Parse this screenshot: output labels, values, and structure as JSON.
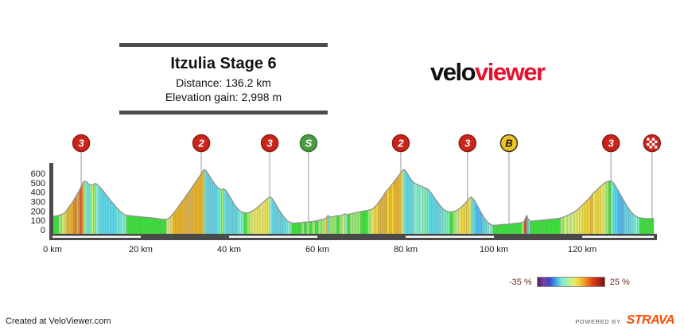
{
  "header": {
    "title": "Itzulia Stage 6",
    "distance_label": "Distance: 136.2 km",
    "elevation_label": "Elevation gain: 2,998 m"
  },
  "logo": {
    "velo": "velo",
    "viewer": "viewer"
  },
  "footer": {
    "created_at": "Created at VeloViewer.com",
    "powered_by": "POWERED BY",
    "strava": "STRAVA"
  },
  "legend": {
    "min_label": "-35 %",
    "max_label": "25 %",
    "gradient_colors": [
      "#4a235e",
      "#7a3fa8",
      "#3b49c8",
      "#3fa8e8",
      "#7ee8d8",
      "#a8f0a0",
      "#e8ec6a",
      "#f0c832",
      "#f0881e",
      "#e0400e",
      "#b5261c",
      "#7a0e08"
    ]
  },
  "chart_data": {
    "type": "area",
    "title": "Itzulia Stage 6",
    "distance_km": 136.2,
    "elevation_gain_m": 2998,
    "xlim": [
      0,
      136.2
    ],
    "ylim": [
      0,
      700
    ],
    "x_ticks": [
      {
        "km": 0,
        "label": "0 km"
      },
      {
        "km": 20,
        "label": "20 km"
      },
      {
        "km": 40,
        "label": "40 km"
      },
      {
        "km": 60,
        "label": "60 km"
      },
      {
        "km": 80,
        "label": "80 km"
      },
      {
        "km": 100,
        "label": "100 km"
      },
      {
        "km": 120,
        "label": "120 km"
      }
    ],
    "y_ticks": [
      {
        "m": 0,
        "label": "0"
      },
      {
        "m": 100,
        "label": "100"
      },
      {
        "m": 200,
        "label": "200"
      },
      {
        "m": 300,
        "label": "300"
      },
      {
        "m": 400,
        "label": "400"
      },
      {
        "m": 500,
        "label": "500"
      },
      {
        "m": 600,
        "label": "600"
      }
    ],
    "scalebar_segments_km": [
      [
        0,
        20
      ],
      [
        40,
        60
      ],
      [
        80,
        100
      ],
      [
        120,
        136.2
      ]
    ],
    "markers": [
      {
        "kind": "category",
        "label": "3",
        "km": 6.5
      },
      {
        "kind": "category",
        "label": "2",
        "km": 33.7
      },
      {
        "kind": "category",
        "label": "3",
        "km": 49.2
      },
      {
        "kind": "sprint",
        "label": "S",
        "km": 58.0
      },
      {
        "kind": "category",
        "label": "2",
        "km": 78.9
      },
      {
        "kind": "category",
        "label": "3",
        "km": 94.0
      },
      {
        "kind": "bonus",
        "label": "B",
        "km": 103.4
      },
      {
        "kind": "category",
        "label": "3",
        "km": 126.5
      },
      {
        "kind": "finish",
        "label": "",
        "km": 135.8
      }
    ],
    "marker_styles": {
      "category": {
        "fill": "#c9251b",
        "stroke": "#8f1810",
        "text": "#ffffff"
      },
      "sprint": {
        "fill": "#4d9b44",
        "stroke": "#35722e",
        "text": "#ffffff"
      },
      "bonus": {
        "fill": "#ecc329",
        "stroke": "#3d3310",
        "text": "#1c1708"
      },
      "finish": {
        "fill": "#c9251b",
        "stroke": "#8f1810",
        "checker": "#ffffff"
      }
    },
    "slope_color_scale": [
      {
        "min_slope_pct": 13,
        "color": "#b5261c"
      },
      {
        "min_slope_pct": 10,
        "color": "#d5512a"
      },
      {
        "min_slope_pct": 8,
        "color": "#e2812c"
      },
      {
        "min_slope_pct": 6,
        "color": "#e6b32d"
      },
      {
        "min_slope_pct": 4.5,
        "color": "#eed53a"
      },
      {
        "min_slope_pct": 3,
        "color": "#e6e468"
      },
      {
        "min_slope_pct": 1.8,
        "color": "#c8ec7d"
      },
      {
        "min_slope_pct": 0.9,
        "color": "#96e86e"
      },
      {
        "min_slope_pct": -0.9,
        "color": "#3cdc3c"
      },
      {
        "min_slope_pct": -2,
        "color": "#86e9b4"
      },
      {
        "min_slope_pct": -3.5,
        "color": "#8feede"
      },
      {
        "min_slope_pct": -5.5,
        "color": "#6fe5da"
      },
      {
        "min_slope_pct": -8,
        "color": "#5cd6e8"
      },
      {
        "min_slope_pct": -12,
        "color": "#52b8ea"
      },
      {
        "min_slope_pct": -18,
        "color": "#4a86de"
      },
      {
        "min_slope_pct": -999,
        "color": "#8a4bb8"
      }
    ],
    "profile": [
      [
        0,
        185
      ],
      [
        0.7,
        190
      ],
      [
        1.4,
        196
      ],
      [
        2.1,
        206
      ],
      [
        2.7,
        222
      ],
      [
        3.2,
        250
      ],
      [
        3.7,
        282
      ],
      [
        4.2,
        316
      ],
      [
        4.7,
        350
      ],
      [
        5.1,
        382
      ],
      [
        5.5,
        415
      ],
      [
        5.9,
        447
      ],
      [
        6.3,
        482
      ],
      [
        6.6,
        516
      ],
      [
        6.9,
        545
      ],
      [
        7.2,
        560
      ],
      [
        7.8,
        550
      ],
      [
        8.3,
        525
      ],
      [
        8.8,
        515
      ],
      [
        9.3,
        528
      ],
      [
        9.8,
        535
      ],
      [
        10.3,
        518
      ],
      [
        10.8,
        495
      ],
      [
        11.4,
        462
      ],
      [
        12,
        425
      ],
      [
        12.6,
        388
      ],
      [
        13.2,
        352
      ],
      [
        13.8,
        318
      ],
      [
        14.4,
        285
      ],
      [
        15,
        255
      ],
      [
        15.6,
        228
      ],
      [
        16.2,
        208
      ],
      [
        16.8,
        196
      ],
      [
        17.6,
        192
      ],
      [
        18.4,
        188
      ],
      [
        19.2,
        184
      ],
      [
        20,
        180
      ],
      [
        21,
        176
      ],
      [
        22,
        172
      ],
      [
        22.8,
        168
      ],
      [
        23.6,
        163
      ],
      [
        24.4,
        158
      ],
      [
        25.2,
        154
      ],
      [
        25.8,
        152
      ],
      [
        26.3,
        165
      ],
      [
        26.8,
        186
      ],
      [
        27.3,
        212
      ],
      [
        27.8,
        242
      ],
      [
        28.3,
        274
      ],
      [
        28.8,
        308
      ],
      [
        29.3,
        340
      ],
      [
        29.8,
        372
      ],
      [
        30.3,
        406
      ],
      [
        30.8,
        440
      ],
      [
        31.3,
        474
      ],
      [
        31.8,
        508
      ],
      [
        32.3,
        542
      ],
      [
        32.8,
        576
      ],
      [
        33.3,
        610
      ],
      [
        33.7,
        642
      ],
      [
        34.1,
        668
      ],
      [
        34.4,
        685
      ],
      [
        34.8,
        668
      ],
      [
        35.3,
        636
      ],
      [
        35.8,
        598
      ],
      [
        36.3,
        560
      ],
      [
        36.8,
        526
      ],
      [
        37.3,
        498
      ],
      [
        37.8,
        480
      ],
      [
        38.3,
        470
      ],
      [
        38.8,
        478
      ],
      [
        39.3,
        460
      ],
      [
        39.8,
        425
      ],
      [
        40.3,
        385
      ],
      [
        40.8,
        345
      ],
      [
        41.3,
        308
      ],
      [
        41.8,
        275
      ],
      [
        42.3,
        250
      ],
      [
        42.8,
        233
      ],
      [
        43.4,
        224
      ],
      [
        44,
        221
      ],
      [
        44.6,
        228
      ],
      [
        45.2,
        240
      ],
      [
        45.8,
        258
      ],
      [
        46.4,
        280
      ],
      [
        47,
        305
      ],
      [
        47.6,
        330
      ],
      [
        48.2,
        355
      ],
      [
        48.7,
        375
      ],
      [
        49.2,
        392
      ],
      [
        49.7,
        378
      ],
      [
        50.2,
        345
      ],
      [
        50.7,
        305
      ],
      [
        51.2,
        265
      ],
      [
        51.7,
        228
      ],
      [
        52.2,
        195
      ],
      [
        52.7,
        165
      ],
      [
        53.2,
        140
      ],
      [
        53.7,
        124
      ],
      [
        54.2,
        116
      ],
      [
        55,
        114
      ],
      [
        55.8,
        120
      ],
      [
        56.4,
        118
      ],
      [
        57,
        126
      ],
      [
        57.6,
        124
      ],
      [
        58.2,
        130
      ],
      [
        58.8,
        128
      ],
      [
        59.5,
        136
      ],
      [
        60.2,
        142
      ],
      [
        60.9,
        150
      ],
      [
        61.6,
        158
      ],
      [
        62,
        170
      ],
      [
        62.4,
        196
      ],
      [
        62.8,
        176
      ],
      [
        63.2,
        180
      ],
      [
        63.8,
        186
      ],
      [
        64.4,
        194
      ],
      [
        65,
        190
      ],
      [
        65.6,
        200
      ],
      [
        66.2,
        212
      ],
      [
        66.8,
        205
      ],
      [
        67.4,
        210
      ],
      [
        68,
        218
      ],
      [
        68.6,
        224
      ],
      [
        69.2,
        230
      ],
      [
        69.8,
        236
      ],
      [
        70.6,
        243
      ],
      [
        71.4,
        250
      ],
      [
        72.2,
        258
      ],
      [
        72.8,
        278
      ],
      [
        73.3,
        302
      ],
      [
        73.8,
        330
      ],
      [
        74.3,
        362
      ],
      [
        74.8,
        396
      ],
      [
        75.3,
        434
      ],
      [
        75.8,
        464
      ],
      [
        76.3,
        488
      ],
      [
        76.8,
        520
      ],
      [
        77.3,
        548
      ],
      [
        77.8,
        580
      ],
      [
        78.3,
        612
      ],
      [
        78.8,
        645
      ],
      [
        79.2,
        668
      ],
      [
        79.6,
        685
      ],
      [
        80,
        668
      ],
      [
        80.5,
        632
      ],
      [
        81,
        592
      ],
      [
        81.5,
        560
      ],
      [
        82,
        538
      ],
      [
        82.6,
        524
      ],
      [
        83.2,
        514
      ],
      [
        83.8,
        500
      ],
      [
        84.4,
        490
      ],
      [
        84.9,
        480
      ],
      [
        85.4,
        456
      ],
      [
        85.9,
        425
      ],
      [
        86.4,
        392
      ],
      [
        86.9,
        358
      ],
      [
        87.4,
        326
      ],
      [
        87.9,
        296
      ],
      [
        88.4,
        270
      ],
      [
        88.9,
        250
      ],
      [
        89.4,
        240
      ],
      [
        90,
        232
      ],
      [
        90.7,
        236
      ],
      [
        91.4,
        246
      ],
      [
        92,
        262
      ],
      [
        92.6,
        284
      ],
      [
        93.2,
        312
      ],
      [
        93.8,
        342
      ],
      [
        94.3,
        370
      ],
      [
        94.8,
        392
      ],
      [
        95.3,
        372
      ],
      [
        95.8,
        338
      ],
      [
        96.3,
        294
      ],
      [
        96.8,
        250
      ],
      [
        97.3,
        208
      ],
      [
        97.8,
        170
      ],
      [
        98.3,
        138
      ],
      [
        98.8,
        114
      ],
      [
        99.3,
        98
      ],
      [
        99.8,
        90
      ],
      [
        100.6,
        92
      ],
      [
        101.4,
        96
      ],
      [
        102.2,
        99
      ],
      [
        103,
        102
      ],
      [
        103.8,
        106
      ],
      [
        104.6,
        110
      ],
      [
        105.4,
        114
      ],
      [
        106.2,
        120
      ],
      [
        106.8,
        128
      ],
      [
        107.1,
        164
      ],
      [
        107.4,
        198
      ],
      [
        107.8,
        152
      ],
      [
        108.2,
        136
      ],
      [
        109,
        138
      ],
      [
        110,
        142
      ],
      [
        111,
        146
      ],
      [
        112,
        150
      ],
      [
        113,
        155
      ],
      [
        114,
        160
      ],
      [
        115,
        166
      ],
      [
        115.8,
        178
      ],
      [
        116.6,
        194
      ],
      [
        117.4,
        212
      ],
      [
        118.2,
        232
      ],
      [
        118.8,
        254
      ],
      [
        119.4,
        278
      ],
      [
        120,
        304
      ],
      [
        120.6,
        332
      ],
      [
        121.2,
        360
      ],
      [
        121.8,
        390
      ],
      [
        122.4,
        428
      ],
      [
        123,
        452
      ],
      [
        123.6,
        480
      ],
      [
        124.2,
        508
      ],
      [
        124.8,
        532
      ],
      [
        125.4,
        550
      ],
      [
        126,
        560
      ],
      [
        126.5,
        562
      ],
      [
        127,
        546
      ],
      [
        127.5,
        512
      ],
      [
        128,
        472
      ],
      [
        128.5,
        430
      ],
      [
        129,
        388
      ],
      [
        129.5,
        346
      ],
      [
        130,
        306
      ],
      [
        130.5,
        270
      ],
      [
        131,
        238
      ],
      [
        131.5,
        212
      ],
      [
        132,
        192
      ],
      [
        132.5,
        178
      ],
      [
        133,
        170
      ],
      [
        133.7,
        166
      ],
      [
        134.4,
        163
      ],
      [
        135.1,
        162
      ],
      [
        135.8,
        163
      ],
      [
        136.2,
        165
      ]
    ]
  }
}
